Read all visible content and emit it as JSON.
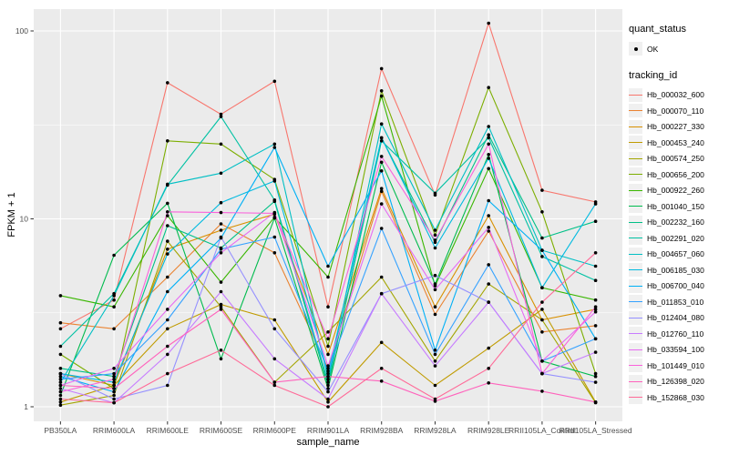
{
  "axes": {
    "x": {
      "label": "sample_name"
    },
    "y": {
      "label": "FPKM + 1",
      "ticks": [
        {
          "label": "1",
          "value": 1
        },
        {
          "label": "10",
          "value": 10
        },
        {
          "label": "100",
          "value": 100
        }
      ],
      "minor_breaks": [
        3.1623,
        31.623
      ]
    }
  },
  "legend": {
    "quant_status": {
      "title": "quant_status",
      "items": [
        {
          "label": "OK",
          "symbol": "point",
          "color": "#000000"
        }
      ]
    },
    "tracking_id": {
      "title": "tracking_id"
    }
  },
  "chart_data": {
    "type": "line",
    "title": "",
    "xlabel": "sample_name",
    "ylabel": "FPKM + 1",
    "y_scale": "log10",
    "ylim": [
      0.85,
      135
    ],
    "grid": "white major and minor on gray panel",
    "legend_position": "right",
    "panel_background": "#EBEBEB",
    "gridline_color": "#FFFFFF",
    "point_color": "#000000",
    "tick_label_color": "#4D4D4D",
    "categories": [
      "PB350LA",
      "RRIM600LA",
      "RRIM600LE",
      "RRIM600SE",
      "RRIM600PE",
      "RRIM901LA",
      "RRIM928BA",
      "RRIM928LA",
      "RRIM928LE",
      "RRII105LA_Control",
      "RRII105LA_Stressed"
    ],
    "series": [
      {
        "name": "Hb_000032_600",
        "color": "#F8766D",
        "values": [
          2.6,
          3.7,
          53,
          36,
          54,
          3.4,
          63,
          13.4,
          110,
          14.2,
          12.3
        ]
      },
      {
        "name": "Hb_000070_110",
        "color": "#EA8331",
        "values": [
          2.8,
          2.6,
          4.9,
          9.4,
          6.6,
          1.6,
          14,
          3.1,
          8.6,
          2.5,
          2.7
        ]
      },
      {
        "name": "Hb_000227_330",
        "color": "#D89000",
        "values": [
          1.5,
          1.3,
          6.9,
          8.7,
          10.6,
          1.9,
          14.5,
          3.4,
          10.4,
          2.9,
          3.3
        ]
      },
      {
        "name": "Hb_000453_240",
        "color": "#C09B00",
        "values": [
          1.06,
          1.3,
          2.6,
          3.5,
          2.9,
          1.06,
          2.2,
          1.3,
          2.05,
          3.3,
          1.06
        ]
      },
      {
        "name": "Hb_000574_250",
        "color": "#A3A500",
        "values": [
          1.02,
          1.15,
          7.6,
          3.4,
          1.35,
          2.5,
          4.9,
          1.75,
          4.5,
          2.9,
          1.05
        ]
      },
      {
        "name": "Hb_000656_200",
        "color": "#7CAE00",
        "values": [
          1.9,
          1.25,
          26,
          25,
          16.2,
          2.1,
          48,
          8.2,
          50,
          10.9,
          1.5
        ]
      },
      {
        "name": "Hb_000922_260",
        "color": "#39B600",
        "values": [
          3.9,
          3.4,
          10.4,
          4.6,
          10.2,
          4.9,
          45,
          4.4,
          18.5,
          4.3,
          3.7
        ]
      },
      {
        "name": "Hb_001040_150",
        "color": "#00BB4E",
        "values": [
          1.15,
          6.4,
          12.1,
          1.8,
          10.1,
          1.25,
          20,
          4.5,
          22,
          1.75,
          1.45
        ]
      },
      {
        "name": "Hb_002232_160",
        "color": "#00C087",
        "values": [
          1.6,
          1.45,
          9.2,
          7.0,
          12.4,
          1.3,
          27,
          7.5,
          28,
          7.9,
          9.7
        ]
      },
      {
        "name": "Hb_002291_020",
        "color": "#00C1A3",
        "values": [
          2.1,
          4.0,
          15.1,
          35,
          12.6,
          1.35,
          26,
          13.7,
          27,
          6.3,
          4.7
        ]
      },
      {
        "name": "Hb_004657_060",
        "color": "#00BFC4",
        "values": [
          1.35,
          3.9,
          15.3,
          17.5,
          25,
          1.4,
          32,
          8.7,
          31,
          6.8,
          5.6
        ]
      },
      {
        "name": "Hb_006185_030",
        "color": "#00BAE0",
        "values": [
          1.5,
          1.35,
          6.5,
          12.2,
          15.9,
          1.5,
          27,
          7.0,
          21,
          4.3,
          12.0
        ]
      },
      {
        "name": "Hb_006700_040",
        "color": "#00B0F6",
        "values": [
          1.45,
          1.2,
          4.1,
          7.9,
          24,
          5.6,
          18,
          2.0,
          12.5,
          6.8,
          2.3
        ]
      },
      {
        "name": "Hb_011853_010",
        "color": "#35A2FF",
        "values": [
          1.4,
          1.5,
          2.9,
          6.9,
          8.0,
          1.55,
          8.9,
          1.9,
          5.7,
          1.75,
          2.3
        ]
      },
      {
        "name": "Hb_012404_080",
        "color": "#9590FF",
        "values": [
          1.5,
          1.1,
          1.3,
          8.0,
          2.6,
          1.2,
          4.0,
          5.0,
          3.6,
          1.5,
          1.35
        ]
      },
      {
        "name": "Hb_012760_110",
        "color": "#C77CFF",
        "values": [
          1.25,
          1.05,
          1.9,
          4.1,
          1.8,
          1.1,
          4.0,
          1.65,
          3.6,
          1.5,
          1.95
        ]
      },
      {
        "name": "Hb_033594_100",
        "color": "#E76BF3",
        "values": [
          1.3,
          1.6,
          3.3,
          6.6,
          10.8,
          1.65,
          12.0,
          4.2,
          9.0,
          1.75,
          3.2
        ]
      },
      {
        "name": "Hb_101449_010",
        "color": "#FA62DB",
        "values": [
          1.2,
          1.4,
          10.9,
          10.8,
          10.7,
          2.3,
          21.5,
          7.7,
          25,
          1.5,
          3.4
        ]
      },
      {
        "name": "Hb_126398_020",
        "color": "#FF62BC",
        "values": [
          1.3,
          1.25,
          2.1,
          3.3,
          1.35,
          1.45,
          1.37,
          1.07,
          1.34,
          1.21,
          1.06
        ]
      },
      {
        "name": "Hb_152868_030",
        "color": "#FF6A98",
        "values": [
          1.1,
          1.05,
          1.5,
          2.0,
          1.3,
          1.0,
          1.6,
          1.1,
          1.6,
          3.6,
          6.6
        ]
      }
    ]
  }
}
